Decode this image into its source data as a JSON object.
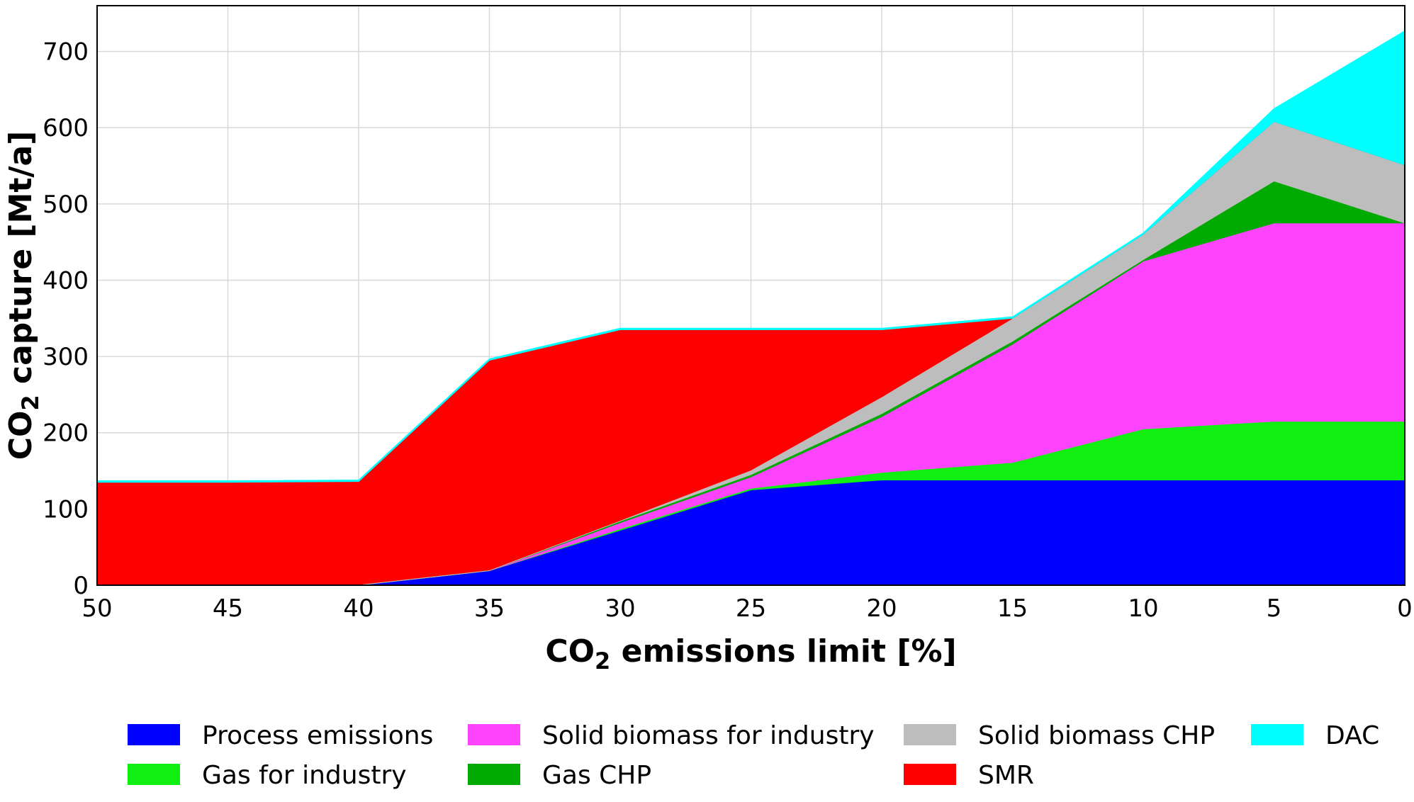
{
  "chart_data": {
    "type": "area",
    "stacked": true,
    "x": [
      50,
      45,
      40,
      35,
      30,
      25,
      20,
      15,
      10,
      5,
      0
    ],
    "x_reversed": true,
    "xlim": [
      50,
      0
    ],
    "ylim": [
      0,
      760
    ],
    "xticks": [
      50,
      45,
      40,
      35,
      30,
      25,
      20,
      15,
      10,
      5,
      0
    ],
    "yticks": [
      0,
      100,
      200,
      300,
      400,
      500,
      600,
      700
    ],
    "xlabel": {
      "prefix": "CO",
      "sub": "2",
      "suffix": " emissions limit [%]"
    },
    "ylabel": {
      "prefix": "CO",
      "sub": "2",
      "suffix": " capture [Mt/a]"
    },
    "grid": true,
    "legend_position": "bottom",
    "series": [
      {
        "name": "Process emissions",
        "color": "#0000ff",
        "values": [
          0,
          0,
          0,
          19,
          72,
          125,
          138,
          138,
          138,
          138,
          138
        ]
      },
      {
        "name": "Gas for industry",
        "color": "#11ee11",
        "values": [
          0,
          0,
          0,
          0,
          2,
          2,
          10,
          23,
          67,
          77,
          77
        ]
      },
      {
        "name": "Solid biomass for industry",
        "color": "#ff44ff",
        "values": [
          0,
          0,
          0,
          0,
          8,
          15,
          73,
          155,
          220,
          260,
          260
        ]
      },
      {
        "name": "Gas CHP",
        "color": "#00aa00",
        "values": [
          0,
          0,
          0,
          0,
          2,
          3,
          4,
          4,
          2,
          55,
          0
        ]
      },
      {
        "name": "Solid biomass CHP",
        "color": "#bdbdbd",
        "values": [
          0,
          0,
          1,
          1,
          1,
          6,
          22,
          30,
          33,
          78,
          76
        ]
      },
      {
        "name": "SMR",
        "color": "#ff0000",
        "values": [
          135,
          135,
          135,
          275,
          250,
          184,
          88,
          0,
          0,
          0,
          0
        ]
      },
      {
        "name": "DAC",
        "color": "#00ffff",
        "values": [
          2,
          2,
          2,
          2,
          2,
          2,
          2,
          2,
          2,
          17,
          176
        ]
      }
    ],
    "legend_order": [
      "Process emissions",
      "Gas for industry",
      "Solid biomass for industry",
      "Gas CHP",
      "Solid biomass CHP",
      "SMR",
      "DAC"
    ]
  }
}
